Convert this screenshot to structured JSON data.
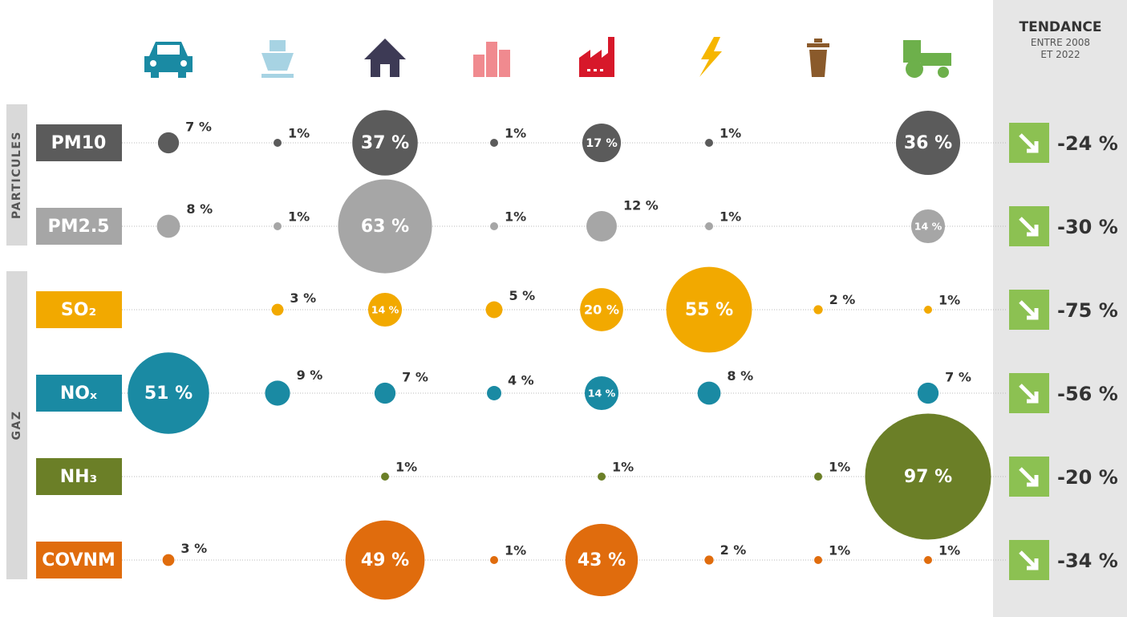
{
  "chart_data": {
    "type": "bubble-matrix",
    "categories": [
      null,
      null,
      null,
      null,
      null,
      null,
      null,
      null
    ],
    "groups": [
      {
        "label": "PARTICULES",
        "rows": [
          0,
          1
        ]
      },
      {
        "label": "GAZ",
        "rows": [
          2,
          5
        ]
      }
    ],
    "trend_title": "TENDANCE",
    "trend_subtitle": "ENTRE 2008 ET 2022",
    "trend_color": "#8cc152",
    "series": [
      {
        "name": "PM10",
        "color": "#5b5b5b",
        "values": [
          7,
          1,
          37,
          1,
          17,
          1,
          null,
          36
        ],
        "value_labels": [
          "7 %",
          "1%",
          "37 %",
          "1%",
          "17 %",
          "1%",
          null,
          "36 %"
        ],
        "trend": -24,
        "trend_label": "-24 %"
      },
      {
        "name": "PM2.5",
        "color": "#a6a6a6",
        "values": [
          8,
          1,
          63,
          1,
          12,
          1,
          null,
          14
        ],
        "value_labels": [
          "8 %",
          "1%",
          "63 %",
          "1%",
          "12 %",
          "1%",
          null,
          "14 %"
        ],
        "trend": -30,
        "trend_label": "-30 %"
      },
      {
        "name": "SO₂",
        "color": "#f2a900",
        "values": [
          null,
          3,
          14,
          5,
          20,
          55,
          2,
          1
        ],
        "value_labels": [
          null,
          "3 %",
          "14 %",
          "5 %",
          "20 %",
          "55 %",
          "2 %",
          "1%"
        ],
        "trend": -75,
        "trend_label": "-75 %"
      },
      {
        "name": "NOₓ",
        "color": "#1a8aa3",
        "values": [
          51,
          9,
          7,
          4,
          14,
          8,
          null,
          7
        ],
        "value_labels": [
          "51 %",
          "9 %",
          "7 %",
          "4 %",
          "14 %",
          "8 %",
          null,
          "7 %"
        ],
        "trend": -56,
        "trend_label": "-56 %"
      },
      {
        "name": "NH₃",
        "color": "#6b7f27",
        "values": [
          null,
          null,
          1,
          null,
          1,
          null,
          1,
          97
        ],
        "value_labels": [
          null,
          null,
          "1%",
          null,
          "1%",
          null,
          "1%",
          "97 %"
        ],
        "trend": -20,
        "trend_label": "-20 %"
      },
      {
        "name": "COVNM",
        "color": "#e06c0d",
        "values": [
          3,
          null,
          49,
          1,
          43,
          2,
          1,
          1
        ],
        "value_labels": [
          "3 %",
          null,
          "49 %",
          "1%",
          "43 %",
          "2 %",
          "1%",
          "1%"
        ],
        "trend": -34,
        "trend_label": "-34 %"
      }
    ]
  }
}
